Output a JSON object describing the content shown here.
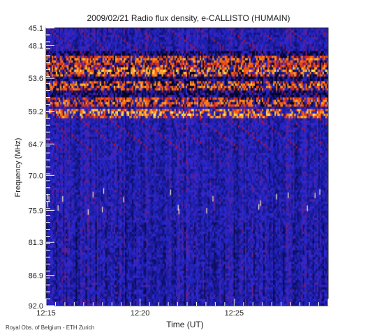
{
  "chart_data": {
    "type": "heatmap",
    "title": "2009/02/21  Radio flux density, e-CALLISTO (HUMAIN)",
    "xlabel": "Time (UT)",
    "ylabel": "Frequency (MHz)",
    "footer": "Royal Obs. of Belgium - ETH Zurich",
    "x_ticks": [
      "12:15",
      "12:20",
      "12:25"
    ],
    "x_range": [
      "12:15",
      "12:30"
    ],
    "y_ticks": [
      "45.1",
      "48.1",
      "53.6",
      "59.2",
      "64.7",
      "70.0",
      "75.9",
      "81.3",
      "86.9",
      "92.0"
    ],
    "y_range": [
      45.1,
      92.0
    ],
    "y_inverted": true,
    "colormap": [
      "#000000",
      "#10106a",
      "#2a2ad8",
      "#c01020",
      "#ff6a10",
      "#ffe040",
      "#ffffff"
    ],
    "emission_bands_mhz": [
      {
        "center": 50.5,
        "intensity": 0.55
      },
      {
        "center": 52.4,
        "intensity": 0.85
      },
      {
        "center": 54.8,
        "intensity": 0.7
      },
      {
        "center": 57.6,
        "intensity": 0.6
      },
      {
        "center": 59.5,
        "intensity": 0.95
      }
    ]
  }
}
